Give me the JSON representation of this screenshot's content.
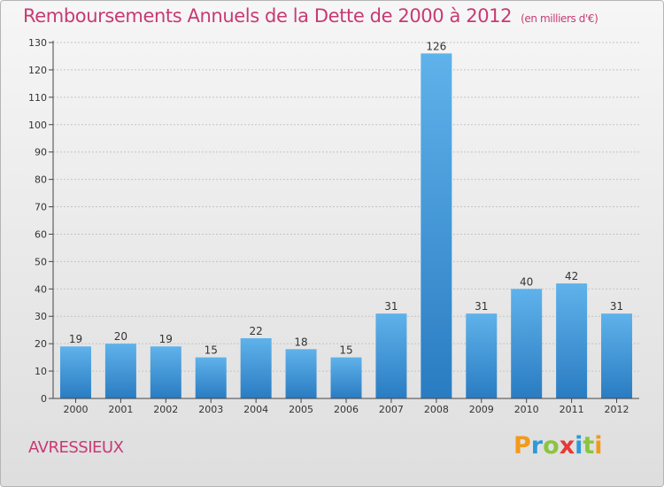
{
  "header": {
    "title": "Remboursements Annuels de la Dette de 2000 à 2012",
    "unit": "(en milliers d'€)"
  },
  "footer": {
    "commune": "AVRESSIEUX",
    "logo_letters": [
      "P",
      "r",
      "o",
      "x",
      "i",
      "t",
      "i"
    ]
  },
  "chart_data": {
    "type": "bar",
    "title": "Remboursements Annuels de la Dette de 2000 à 2012",
    "subtitle": "(en milliers d'€)",
    "categories": [
      "2000",
      "2001",
      "2002",
      "2003",
      "2004",
      "2005",
      "2006",
      "2007",
      "2008",
      "2009",
      "2010",
      "2011",
      "2012"
    ],
    "values": [
      19,
      20,
      19,
      15,
      22,
      18,
      15,
      31,
      126,
      31,
      40,
      42,
      31
    ],
    "ylim": [
      0,
      130
    ],
    "yticks": [
      0,
      10,
      20,
      30,
      40,
      50,
      60,
      70,
      80,
      90,
      100,
      110,
      120,
      130
    ],
    "grid": "horizontal-dotted",
    "bar_color": "#4ba3df",
    "bar_color_dark": "#2c7fc4",
    "title_color": "#c83a73"
  }
}
